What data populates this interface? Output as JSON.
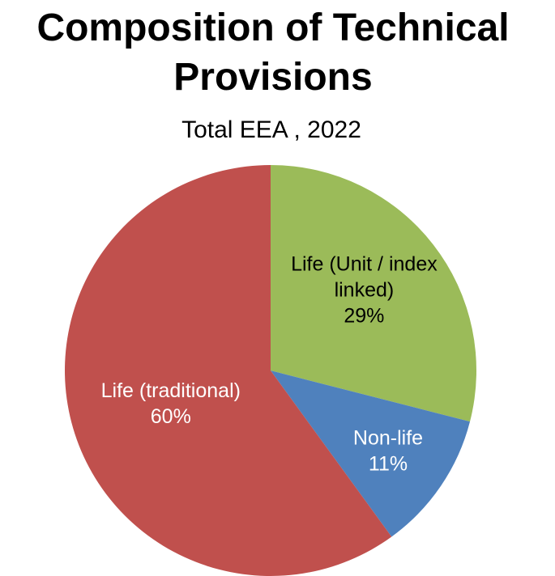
{
  "chart_data": {
    "type": "pie",
    "title_lines": [
      "Composition of Technical",
      "Provisions"
    ],
    "subtitle": "Total EEA , 2022",
    "start_angle_deg": 0,
    "direction": "clockwise",
    "slices": [
      {
        "name_lines": [
          "Life (Unit / index",
          "linked)"
        ],
        "pct_label": "29%",
        "value": 29,
        "color": "#9BBB59",
        "label_color": "#000000"
      },
      {
        "name_lines": [
          "Non-life"
        ],
        "pct_label": "11%",
        "value": 11,
        "color": "#4F81BD",
        "label_color": "#ffffff"
      },
      {
        "name_lines": [
          "Life (traditional)"
        ],
        "pct_label": "60%",
        "value": 60,
        "color": "#C0504D",
        "label_color": "#ffffff"
      }
    ]
  }
}
